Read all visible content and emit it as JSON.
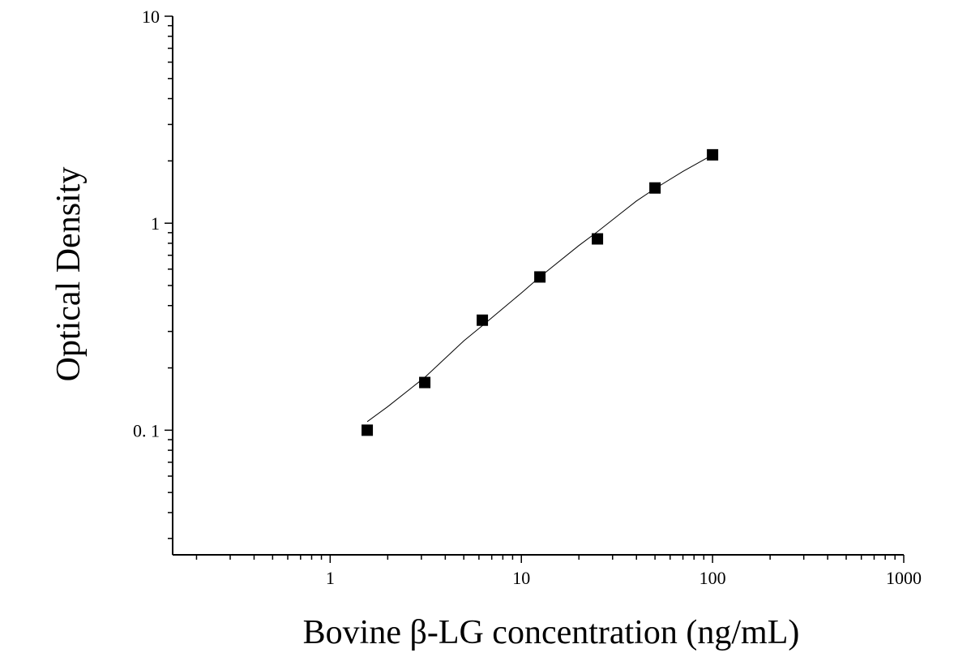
{
  "chart_data": {
    "type": "scatter",
    "title": "",
    "xlabel": "Bovine β-LG concentration (ng/mL)",
    "ylabel": "Optical Density",
    "xscale": "log",
    "yscale": "log",
    "xlim": [
      0.15,
      1000
    ],
    "ylim": [
      0.025,
      10
    ],
    "xticks": [
      1,
      10,
      100,
      1000
    ],
    "xtick_labels": [
      "1",
      "10",
      "100",
      "1000"
    ],
    "yticks": [
      0.1,
      1,
      10
    ],
    "ytick_labels": [
      "0. 1",
      "1",
      "10"
    ],
    "grid": false,
    "legend": "none",
    "marker": "filled-square",
    "marker_color": "#000000",
    "line_color": "#000000",
    "series": [
      {
        "x": [
          1.5625,
          3.125,
          6.25,
          12.5,
          25,
          50,
          100
        ],
        "y": [
          0.1,
          0.17,
          0.34,
          0.55,
          0.84,
          1.48,
          2.14
        ]
      }
    ],
    "fit_curve": {
      "x": [
        1.5625,
        2,
        3.125,
        5,
        6.25,
        10,
        12.5,
        20,
        25,
        40,
        50,
        70,
        100
      ],
      "y": [
        0.11,
        0.13,
        0.18,
        0.27,
        0.32,
        0.46,
        0.55,
        0.78,
        0.91,
        1.28,
        1.47,
        1.78,
        2.14
      ]
    }
  }
}
